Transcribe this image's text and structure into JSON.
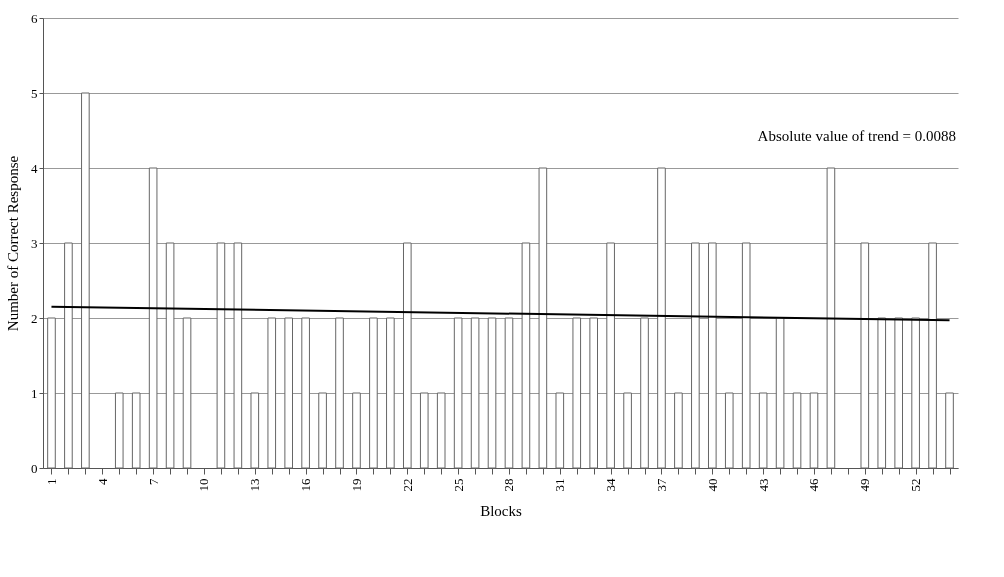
{
  "chart_data": {
    "type": "bar",
    "xlabel": "Blocks",
    "ylabel": "Number of Correct Response",
    "x": [
      1,
      2,
      3,
      4,
      5,
      6,
      7,
      8,
      9,
      10,
      11,
      12,
      13,
      14,
      15,
      16,
      17,
      18,
      19,
      20,
      21,
      22,
      23,
      24,
      25,
      26,
      27,
      28,
      29,
      30,
      31,
      32,
      33,
      34,
      35,
      36,
      37,
      38,
      39,
      40,
      41,
      42,
      43,
      44,
      45,
      46,
      47,
      48,
      49,
      50,
      51,
      52,
      53,
      54
    ],
    "series": [
      {
        "color": "#ffffff",
        "values": [
          2,
          3,
          5,
          0,
          1,
          1,
          4,
          3,
          2,
          0,
          3,
          3,
          1,
          2,
          2,
          2,
          1,
          2,
          1,
          2,
          2,
          3,
          1,
          1,
          2,
          2,
          2,
          2,
          3,
          4,
          1,
          2,
          2,
          3,
          1,
          2,
          4,
          1,
          3,
          3,
          1,
          3,
          1,
          2,
          1,
          1,
          4,
          0,
          3,
          2,
          2,
          2,
          3,
          1
        ]
      },
      {
        "type": "line",
        "color": "#000000",
        "x": [
          1,
          54
        ],
        "values": [
          2.15,
          1.97
        ]
      }
    ],
    "xlim": [
      0.5,
      54.5
    ],
    "xticks": [
      1,
      {
        "value": 2,
        "label": null
      },
      {
        "value": 3,
        "label": null
      },
      4,
      {
        "value": 5,
        "label": null
      },
      {
        "value": 6,
        "label": null
      },
      7,
      {
        "value": 8,
        "label": null
      },
      {
        "value": 9,
        "label": null
      },
      10,
      {
        "value": 11,
        "label": null
      },
      {
        "value": 12,
        "label": null
      },
      13,
      {
        "value": 14,
        "label": null
      },
      {
        "value": 15,
        "label": null
      },
      16,
      {
        "value": 17,
        "label": null
      },
      {
        "value": 18,
        "label": null
      },
      19,
      {
        "value": 20,
        "label": null
      },
      {
        "value": 21,
        "label": null
      },
      22,
      {
        "value": 23,
        "label": null
      },
      {
        "value": 24,
        "label": null
      },
      25,
      {
        "value": 26,
        "label": null
      },
      {
        "value": 27,
        "label": null
      },
      28,
      {
        "value": 29,
        "label": null
      },
      {
        "value": 30,
        "label": null
      },
      31,
      {
        "value": 32,
        "label": null
      },
      {
        "value": 33,
        "label": null
      },
      34,
      {
        "value": 35,
        "label": null
      },
      {
        "value": 36,
        "label": null
      },
      37,
      {
        "value": 38,
        "label": null
      },
      {
        "value": 39,
        "label": null
      },
      40,
      {
        "value": 41,
        "label": null
      },
      {
        "value": 42,
        "label": null
      },
      43,
      {
        "value": 44,
        "label": null
      },
      {
        "value": 45,
        "label": null
      },
      46,
      {
        "value": 47,
        "label": null
      },
      {
        "value": 48,
        "label": null
      },
      49,
      {
        "value": 50,
        "label": null
      },
      {
        "value": 51,
        "label": null
      },
      52,
      {
        "value": 53,
        "label": null
      },
      {
        "value": 54,
        "label": null
      }
    ],
    "ylim": [
      0,
      6
    ],
    "yticks": [
      0,
      1,
      2,
      3,
      4,
      5,
      6
    ],
    "grid": "y",
    "annotations": [
      "Absolute value of trend = 0.0088"
    ]
  }
}
